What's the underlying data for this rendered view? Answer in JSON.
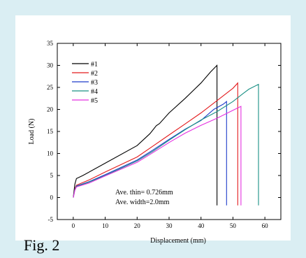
{
  "figure_label": "Fig. 2",
  "colors": {
    "page_background": "#daeef3",
    "panel_background": "#ffffff",
    "axis": "#000000"
  },
  "chart_data": {
    "type": "line",
    "xlabel": "Displacement (mm)",
    "ylabel": "Load (N)",
    "xlim": [
      -5,
      65
    ],
    "ylim": [
      -5,
      35
    ],
    "x_ticks": [
      0,
      10,
      20,
      30,
      40,
      50,
      60
    ],
    "y_ticks": [
      -5,
      0,
      5,
      10,
      15,
      20,
      25,
      30,
      35
    ],
    "grid": false,
    "legend_position": "top-left",
    "annotations": [
      "Ave. thin= 0.726mm",
      "Ave. width=2.0mm"
    ],
    "series": [
      {
        "name": "#1",
        "color": "#000000",
        "points": [
          [
            0,
            0
          ],
          [
            0.5,
            3
          ],
          [
            1,
            4.3
          ],
          [
            3,
            5
          ],
          [
            10,
            7.8
          ],
          [
            20,
            11.8
          ],
          [
            24,
            14.5
          ],
          [
            26,
            16.3
          ],
          [
            27,
            16.8
          ],
          [
            30,
            19.2
          ],
          [
            35,
            22.5
          ],
          [
            40,
            26
          ],
          [
            43,
            28.5
          ],
          [
            45,
            30
          ],
          [
            45,
            -1.8
          ]
        ]
      },
      {
        "name": "#2",
        "color": "#e31a1c",
        "points": [
          [
            0,
            0
          ],
          [
            0.5,
            2
          ],
          [
            1,
            2.8
          ],
          [
            5,
            4
          ],
          [
            10,
            5.8
          ],
          [
            20,
            9.2
          ],
          [
            25,
            11.7
          ],
          [
            30,
            14.2
          ],
          [
            35,
            16.7
          ],
          [
            40,
            19.2
          ],
          [
            45,
            22
          ],
          [
            50,
            24.8
          ],
          [
            51.5,
            26
          ],
          [
            51.5,
            -1.8
          ]
        ]
      },
      {
        "name": "#3",
        "color": "#1f3cc9",
        "points": [
          [
            0,
            0
          ],
          [
            0.5,
            1.8
          ],
          [
            1,
            2.6
          ],
          [
            5,
            3.6
          ],
          [
            10,
            5.2
          ],
          [
            20,
            8.5
          ],
          [
            25,
            10.8
          ],
          [
            30,
            13.2
          ],
          [
            35,
            15.5
          ],
          [
            40,
            17.5
          ],
          [
            44,
            20
          ],
          [
            47,
            21.2
          ],
          [
            48,
            21.8
          ],
          [
            48,
            -1.8
          ]
        ]
      },
      {
        "name": "#4",
        "color": "#1a9085",
        "points": [
          [
            0,
            0
          ],
          [
            0.5,
            1.8
          ],
          [
            1,
            2.5
          ],
          [
            5,
            3.5
          ],
          [
            10,
            5
          ],
          [
            20,
            8.3
          ],
          [
            25,
            10.5
          ],
          [
            30,
            13
          ],
          [
            35,
            15.4
          ],
          [
            40,
            17.6
          ],
          [
            45,
            19.5
          ],
          [
            50,
            21.8
          ],
          [
            53,
            23.5
          ],
          [
            55,
            24.6
          ],
          [
            58,
            25.7
          ],
          [
            58,
            -1.8
          ]
        ]
      },
      {
        "name": "#5",
        "color": "#e530e0",
        "points": [
          [
            0,
            0
          ],
          [
            0.5,
            1.6
          ],
          [
            1,
            2.4
          ],
          [
            5,
            3.3
          ],
          [
            10,
            4.9
          ],
          [
            20,
            8
          ],
          [
            25,
            10.2
          ],
          [
            30,
            12.5
          ],
          [
            35,
            14.6
          ],
          [
            40,
            16.4
          ],
          [
            45,
            18
          ],
          [
            50,
            19.8
          ],
          [
            52.5,
            20.7
          ],
          [
            52.5,
            -1.8
          ]
        ]
      }
    ]
  }
}
